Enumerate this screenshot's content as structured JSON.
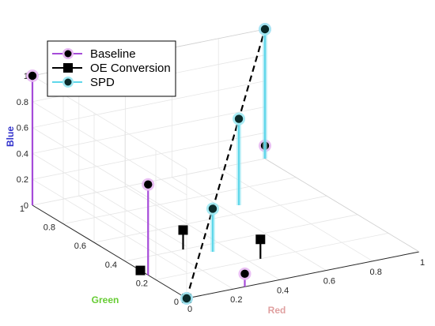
{
  "chart_data": {
    "type": "scatter3d-stem",
    "axes": {
      "x": {
        "label": "Red",
        "range": [
          0,
          1
        ],
        "ticks": [
          "0",
          "0.2",
          "0.4",
          "0.6",
          "0.8",
          "1"
        ],
        "label_color": "#e0a0a0"
      },
      "y": {
        "label": "Green",
        "range": [
          0,
          1
        ],
        "ticks": [
          "0",
          "0.2",
          "0.4",
          "0.6",
          "0.8",
          "1"
        ],
        "label_color": "#66cc33"
      },
      "z": {
        "label": "Blue",
        "range": [
          0,
          1
        ],
        "ticks": [
          "0",
          "0.2",
          "0.4",
          "0.6",
          "0.8",
          "1"
        ],
        "label_color": "#3333cc"
      }
    },
    "grid": true,
    "legend": {
      "position": "top-left",
      "entries": [
        {
          "name": "Baseline",
          "marker": "circle",
          "color": "#a64bd9"
        },
        {
          "name": "OE Conversion",
          "marker": "square",
          "color": "#000000"
        },
        {
          "name": "SPD",
          "marker": "circle",
          "color": "#5ed7ea"
        }
      ]
    },
    "series": [
      {
        "name": "Baseline",
        "color": "#a64bd9",
        "points": [
          {
            "x": 0,
            "y": 0,
            "z": 0
          },
          {
            "x": 0.25,
            "y": 0,
            "z": 0.1
          },
          {
            "x": 0,
            "y": 0.25,
            "z": 0.7
          },
          {
            "x": 1,
            "y": 1,
            "z": 0.1
          },
          {
            "x": 0,
            "y": 1,
            "z": 1
          },
          {
            "x": 1,
            "y": 1,
            "z": 1
          }
        ]
      },
      {
        "name": "OE Conversion",
        "color": "#000000",
        "points": [
          {
            "x": 0,
            "y": 0,
            "z": 0
          },
          {
            "x": 0.45,
            "y": 0.2,
            "z": 0.15
          },
          {
            "x": 0.25,
            "y": 0.4,
            "z": 0.15
          },
          {
            "x": 0,
            "y": 0.3,
            "z": 0
          }
        ]
      },
      {
        "name": "SPD",
        "color": "#5ed7ea",
        "points": [
          {
            "x": 0,
            "y": 0,
            "z": 0
          },
          {
            "x": 0.333,
            "y": 0.333,
            "z": 0.333
          },
          {
            "x": 0.667,
            "y": 0.667,
            "z": 0.667
          },
          {
            "x": 1,
            "y": 1,
            "z": 1
          }
        ]
      }
    ],
    "annotations": [
      {
        "type": "dashed-line",
        "from": {
          "x": 0,
          "y": 0,
          "z": 0
        },
        "to": {
          "x": 1,
          "y": 1,
          "z": 1
        },
        "color": "#000000"
      }
    ]
  }
}
